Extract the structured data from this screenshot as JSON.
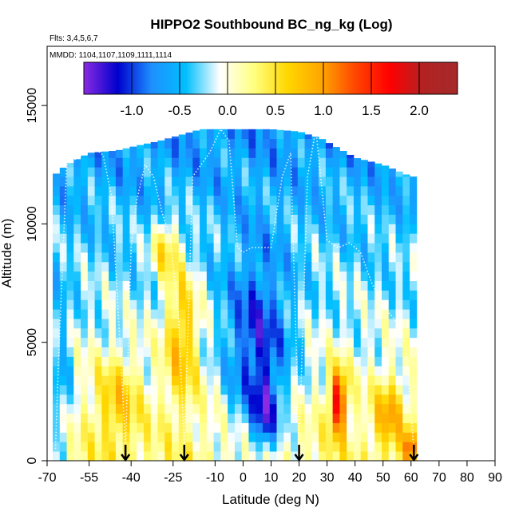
{
  "chart_data": {
    "type": "heatmap",
    "title": "HIPPO2 Southbound BC_ng_kg (Log)",
    "flights_note": "Flts: 3,4,5,6,7",
    "dates_note": "MMDD: 1104,1107,1109,1111,1114",
    "xlabel": "Latitude (deg N)",
    "ylabel": "Altitude (m)",
    "xlim": [
      -70,
      90
    ],
    "ylim": [
      0,
      17500
    ],
    "x_ticks": [
      -70,
      -55,
      -40,
      -25,
      -10,
      0,
      10,
      20,
      30,
      40,
      50,
      60,
      70,
      80,
      90
    ],
    "x_tick_labels": [
      "-70",
      "-55",
      "-40",
      "-25",
      "-10",
      "0",
      "10",
      "20",
      "30",
      "40",
      "50",
      "60",
      "70",
      "80",
      "90"
    ],
    "y_ticks": [
      0,
      5000,
      10000,
      15000
    ],
    "y_tick_labels": [
      "0",
      "5000",
      "10000",
      "15000"
    ],
    "colorbar": {
      "min": -1.5,
      "max": 2.4,
      "ticks": [
        -1.0,
        -0.5,
        0.0,
        0.5,
        1.0,
        1.5,
        2.0
      ],
      "tick_labels": [
        "-1.0",
        "-0.5",
        "0.0",
        "0.5",
        "1.0",
        "1.5",
        "2.0"
      ],
      "colors": [
        "#8a2be2",
        "#0000cd",
        "#1e90ff",
        "#00bfff",
        "#ffffff",
        "#ffff80",
        "#ffd700",
        "#ffa500",
        "#ff4500",
        "#ff0000",
        "#b22222",
        "#a52a2a"
      ]
    },
    "arrow_latitudes": [
      -42,
      -21,
      20,
      61
    ],
    "flight_tracks": [
      {
        "x": [
          -67,
          -66,
          -63,
          -59,
          -56,
          -53,
          -50,
          -47,
          -44,
          -42
        ],
        "y": [
          500,
          4000,
          12500,
          12800,
          13000,
          13200,
          12900,
          11200,
          5000,
          500
        ]
      },
      {
        "x": [
          -42,
          -40,
          -38,
          -35,
          -32,
          -29,
          -26,
          -23,
          -21
        ],
        "y": [
          500,
          9000,
          11000,
          12500,
          12000,
          10500,
          9400,
          6000,
          500
        ]
      },
      {
        "x": [
          -21,
          -18,
          -15,
          -12,
          -10,
          -8,
          -5,
          -2,
          0,
          3,
          6,
          10,
          14,
          17,
          20
        ],
        "y": [
          500,
          12000,
          12500,
          13000,
          13500,
          14000,
          13500,
          9000,
          8800,
          9000,
          9000,
          9000,
          12000,
          13000,
          500
        ]
      },
      {
        "x": [
          20,
          23,
          26,
          30,
          34,
          38,
          42,
          46,
          50,
          54,
          58,
          61
        ],
        "y": [
          500,
          12000,
          14000,
          9300,
          9000,
          9200,
          8800,
          7500,
          6500,
          6000,
          5000,
          500
        ]
      }
    ],
    "field": {
      "x_range": [
        -68,
        60
      ],
      "x_step": 2.5,
      "y_step": 400,
      "ceiling": [
        {
          "x": -68,
          "y": 12000
        },
        {
          "x": -63,
          "y": 12500
        },
        {
          "x": -55,
          "y": 13000
        },
        {
          "x": -45,
          "y": 13100
        },
        {
          "x": -38,
          "y": 13300
        },
        {
          "x": -30,
          "y": 13500
        },
        {
          "x": -24,
          "y": 13700
        },
        {
          "x": -15,
          "y": 14000
        },
        {
          "x": -5,
          "y": 14000
        },
        {
          "x": 10,
          "y": 14000
        },
        {
          "x": 20,
          "y": 13900
        },
        {
          "x": 28,
          "y": 13600
        },
        {
          "x": 40,
          "y": 12800
        },
        {
          "x": 50,
          "y": 12500
        },
        {
          "x": 60,
          "y": 12000
        }
      ],
      "features": [
        {
          "lat": 5,
          "alt": 4500,
          "sx": 12,
          "sy": 4000,
          "amp": -1.0
        },
        {
          "lat": 8,
          "alt": 2000,
          "sx": 4,
          "sy": 1500,
          "amp": -0.8
        },
        {
          "lat": -22,
          "alt": 5500,
          "sx": 6,
          "sy": 3000,
          "amp": 0.9
        },
        {
          "lat": -28,
          "alt": 9000,
          "sx": 5,
          "sy": 1200,
          "amp": 0.8
        },
        {
          "lat": 34,
          "alt": 2500,
          "sx": 3,
          "sy": 1400,
          "amp": 1.7
        },
        {
          "lat": 52,
          "alt": 2000,
          "sx": 5,
          "sy": 1500,
          "amp": 0.8
        },
        {
          "lat": -45,
          "alt": 2500,
          "sx": 8,
          "sy": 2000,
          "amp": 0.6
        },
        {
          "lat": 60,
          "alt": 500,
          "sx": 3,
          "sy": 800,
          "amp": 1.0
        },
        {
          "lat": -65,
          "alt": 3000,
          "sx": 4,
          "sy": 4000,
          "amp": -0.5
        }
      ]
    }
  }
}
